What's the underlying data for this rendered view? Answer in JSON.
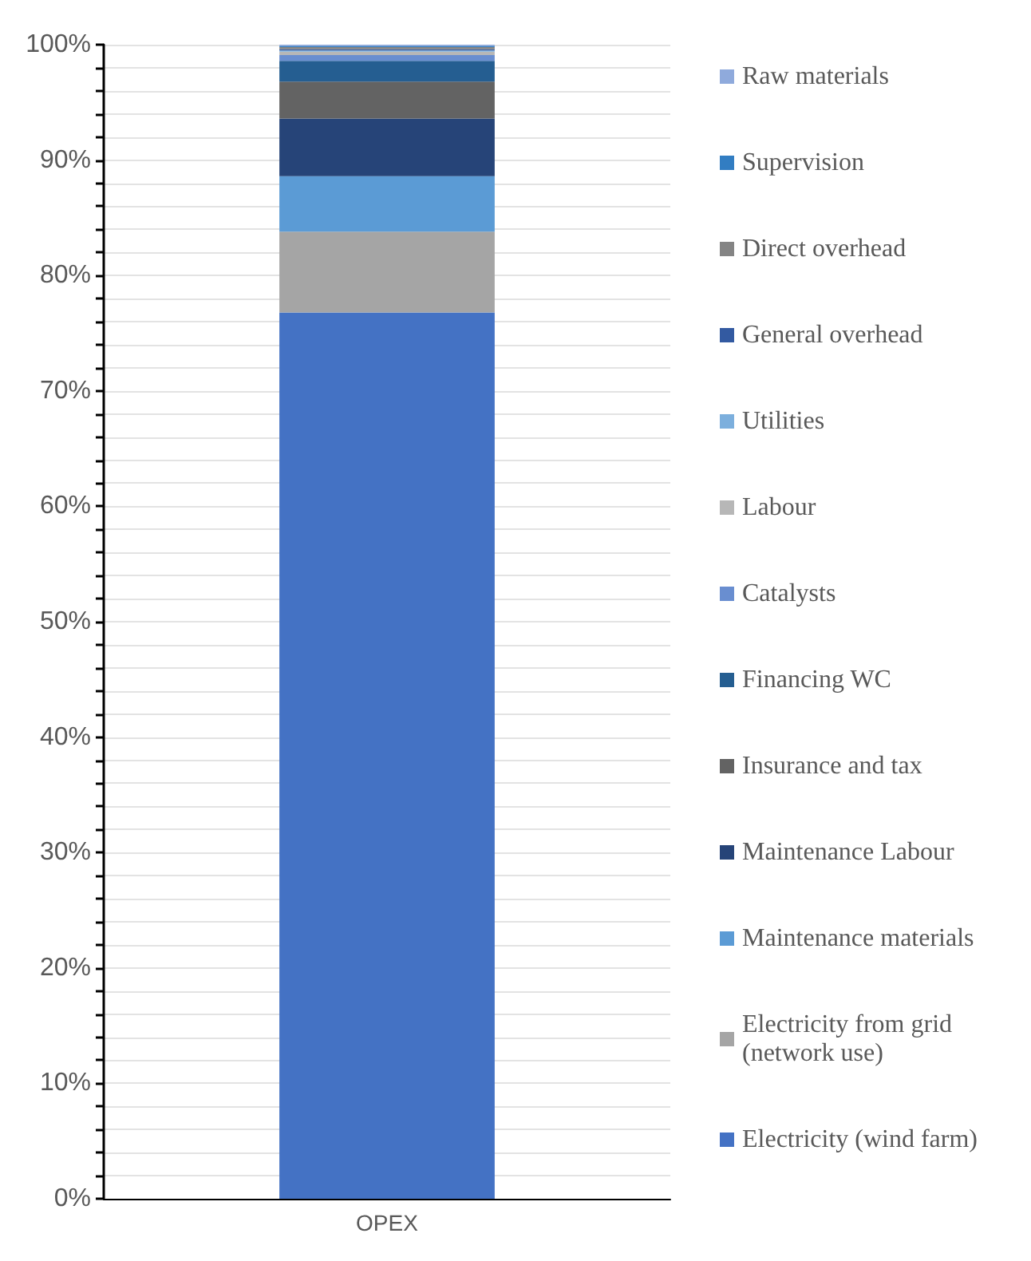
{
  "chart_data": {
    "type": "bar",
    "stacked": true,
    "categories": [
      "OPEX"
    ],
    "series": [
      {
        "name": "Electricity (wind farm)",
        "color": "#4472c4",
        "values": [
          76.8
        ]
      },
      {
        "name": "Electricity from grid (network use)",
        "color": "#a5a5a5",
        "values": [
          7.0
        ]
      },
      {
        "name": "Maintenance materials",
        "color": "#5b9bd5",
        "values": [
          4.8
        ]
      },
      {
        "name": "Maintenance Labour",
        "color": "#264478",
        "values": [
          5.0
        ]
      },
      {
        "name": "Insurance and tax",
        "color": "#636363",
        "values": [
          3.2
        ]
      },
      {
        "name": "Financing WC",
        "color": "#255e91",
        "values": [
          1.8
        ]
      },
      {
        "name": "Catalysts",
        "color": "#698ed0",
        "values": [
          0.5
        ]
      },
      {
        "name": "Labour",
        "color": "#b7b7b7",
        "values": [
          0.3
        ]
      },
      {
        "name": "Utilities",
        "color": "#7cafdd",
        "values": [
          0.1
        ]
      },
      {
        "name": "General overhead",
        "color": "#335aa1",
        "values": [
          0.1
        ]
      },
      {
        "name": "Direct overhead",
        "color": "#848484",
        "values": [
          0.2
        ]
      },
      {
        "name": "Supervision",
        "color": "#327dc2",
        "values": [
          0.1
        ]
      },
      {
        "name": "Raw materials",
        "color": "#8faadc",
        "values": [
          0.1
        ]
      }
    ],
    "ylim": [
      0,
      100
    ],
    "yticks": [
      {
        "value": 0,
        "label": "0%"
      },
      {
        "value": 2,
        "label": null
      },
      {
        "value": 4,
        "label": null
      },
      {
        "value": 6,
        "label": null
      },
      {
        "value": 8,
        "label": null
      },
      {
        "value": 10,
        "label": "10%"
      },
      {
        "value": 12,
        "label": null
      },
      {
        "value": 14,
        "label": null
      },
      {
        "value": 16,
        "label": null
      },
      {
        "value": 18,
        "label": null
      },
      {
        "value": 20,
        "label": "20%"
      },
      {
        "value": 22,
        "label": null
      },
      {
        "value": 24,
        "label": null
      },
      {
        "value": 26,
        "label": null
      },
      {
        "value": 28,
        "label": null
      },
      {
        "value": 30,
        "label": "30%"
      },
      {
        "value": 32,
        "label": null
      },
      {
        "value": 34,
        "label": null
      },
      {
        "value": 36,
        "label": null
      },
      {
        "value": 38,
        "label": null
      },
      {
        "value": 40,
        "label": "40%"
      },
      {
        "value": 42,
        "label": null
      },
      {
        "value": 44,
        "label": null
      },
      {
        "value": 46,
        "label": null
      },
      {
        "value": 48,
        "label": null
      },
      {
        "value": 50,
        "label": "50%"
      },
      {
        "value": 52,
        "label": null
      },
      {
        "value": 54,
        "label": null
      },
      {
        "value": 56,
        "label": null
      },
      {
        "value": 58,
        "label": null
      },
      {
        "value": 60,
        "label": "60%"
      },
      {
        "value": 62,
        "label": null
      },
      {
        "value": 64,
        "label": null
      },
      {
        "value": 66,
        "label": null
      },
      {
        "value": 68,
        "label": null
      },
      {
        "value": 70,
        "label": "70%"
      },
      {
        "value": 72,
        "label": null
      },
      {
        "value": 74,
        "label": null
      },
      {
        "value": 76,
        "label": null
      },
      {
        "value": 78,
        "label": null
      },
      {
        "value": 80,
        "label": "80%"
      },
      {
        "value": 82,
        "label": null
      },
      {
        "value": 84,
        "label": null
      },
      {
        "value": 86,
        "label": null
      },
      {
        "value": 88,
        "label": null
      },
      {
        "value": 90,
        "label": "90%"
      },
      {
        "value": 92,
        "label": null
      },
      {
        "value": 94,
        "label": null
      },
      {
        "value": 96,
        "label": null
      },
      {
        "value": 98,
        "label": null
      },
      {
        "value": 100,
        "label": "100%"
      }
    ],
    "grid": "y",
    "legend": "right"
  }
}
